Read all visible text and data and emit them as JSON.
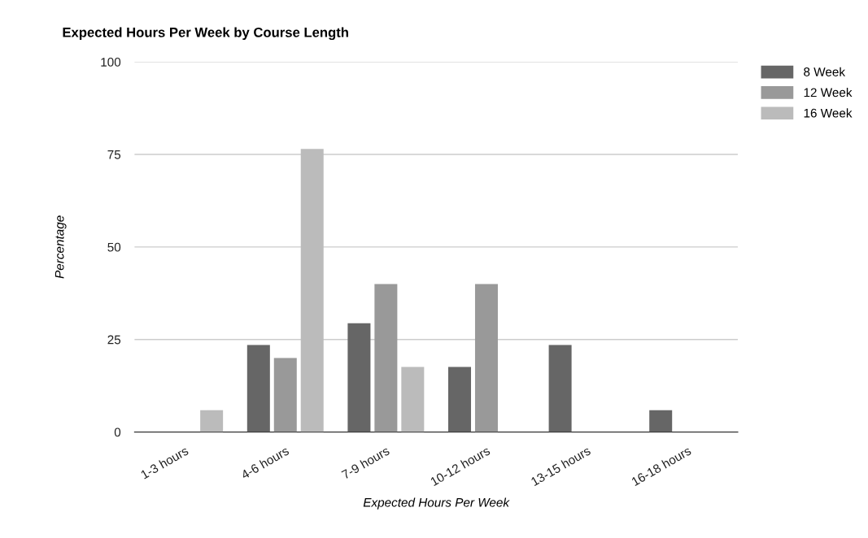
{
  "chart_data": {
    "type": "bar",
    "title": "Expected Hours Per Week by Course Length",
    "xlabel": "Expected Hours Per Week",
    "ylabel": "Percentage",
    "categories": [
      "1-3 hours",
      "4-6 hours",
      "7-9 hours",
      "10-12 hours",
      "13-15 hours",
      "16-18 hours"
    ],
    "series": [
      {
        "name": "8 Week",
        "color": "#666666",
        "values": [
          null,
          23.5,
          29.4,
          17.6,
          23.5,
          5.9
        ]
      },
      {
        "name": "12 Week",
        "color": "#999999",
        "values": [
          null,
          20,
          40,
          40,
          null,
          null
        ]
      },
      {
        "name": "16 Week",
        "color": "#bbbbbb",
        "values": [
          5.9,
          76.5,
          17.6,
          null,
          null,
          null
        ]
      }
    ],
    "ylim": [
      0,
      100
    ],
    "yticks": [
      0,
      25,
      50,
      75,
      100
    ],
    "grid": "y",
    "legend": "top right"
  }
}
